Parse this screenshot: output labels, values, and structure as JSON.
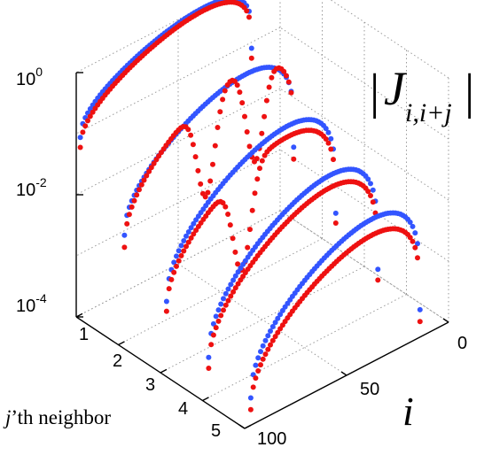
{
  "chart_data": {
    "type": "scatter",
    "projection": "3d",
    "zlabel_title": {
      "bar": "|",
      "J": "J",
      "sub": "i,i+j",
      "bar2": "|"
    },
    "xlabel": {
      "var": "j",
      "rest": "’th neighbor"
    },
    "ylabel": "i",
    "z_scale": "log",
    "x_ticks": [
      "1",
      "2",
      "3",
      "4",
      "5"
    ],
    "y_ticks": [
      "0",
      "50",
      "100"
    ],
    "z_ticks": [
      {
        "base": "10",
        "exp": "0",
        "value": 1
      },
      {
        "base": "10",
        "exp": "-2",
        "value": 0.01
      },
      {
        "base": "10",
        "exp": "-4",
        "value": 0.0001
      }
    ],
    "xlim": [
      1,
      5
    ],
    "ylim": [
      0,
      100
    ],
    "zlim": [
      0.0001,
      1
    ],
    "colors": {
      "blue": "#3355ff",
      "red": "#ee1111"
    },
    "series": [
      {
        "color": "blue",
        "j": 1,
        "peak": 0.95,
        "edge": 0.08,
        "i_start": 14,
        "i_end": 98
      },
      {
        "color": "red",
        "j": 1,
        "peak": 0.85,
        "edge": 0.055,
        "i_start": 14,
        "i_end": 98
      },
      {
        "color": "blue",
        "j": 2,
        "peak": 0.22,
        "edge": 0.0055,
        "i_start": 14,
        "i_end": 97
      },
      {
        "color": "red",
        "j": 2,
        "peak": 0.28,
        "edge": 0.0035,
        "i_start": 14,
        "i_end": 97,
        "dips": [
          57,
          33
        ]
      },
      {
        "color": "blue",
        "j": 3,
        "peak": 0.09,
        "edge": 0.0013,
        "i_start": 14,
        "i_end": 97
      },
      {
        "color": "red",
        "j": 3,
        "peak": 0.06,
        "edge": 0.0009,
        "i_start": 14,
        "i_end": 97,
        "dips": [
          60
        ]
      },
      {
        "color": "blue",
        "j": 4,
        "peak": 0.04,
        "edge": 0.00045,
        "i_start": 14,
        "i_end": 97
      },
      {
        "color": "red",
        "j": 4,
        "peak": 0.025,
        "edge": 0.0003,
        "i_start": 14,
        "i_end": 97
      },
      {
        "color": "blue",
        "j": 5,
        "peak": 0.022,
        "edge": 0.00028,
        "i_start": 14,
        "i_end": 97
      },
      {
        "color": "red",
        "j": 5,
        "peak": 0.012,
        "edge": 0.00018,
        "i_start": 14,
        "i_end": 97
      }
    ],
    "grid": true,
    "legend": "none"
  }
}
